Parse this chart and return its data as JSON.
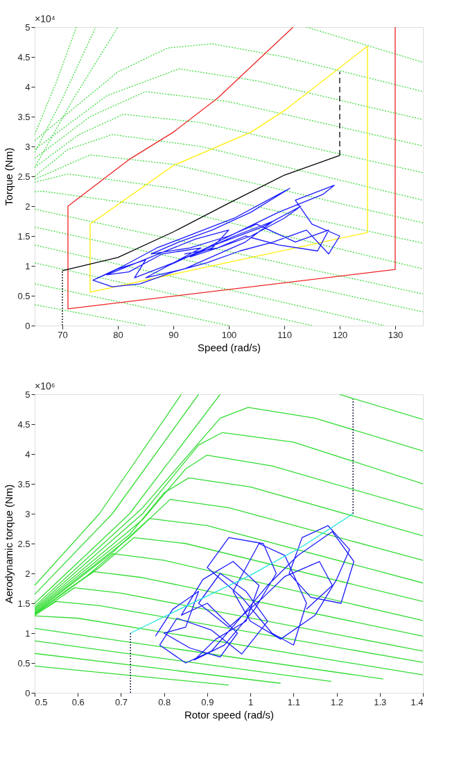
{
  "chart_data": [
    {
      "type": "line",
      "xlabel": "Speed (rad/s)",
      "ylabel": "Torque (Nm)",
      "annotations": [
        "×10⁴"
      ],
      "xlim": [
        65,
        135
      ],
      "ylim": [
        0,
        5
      ],
      "xticks": [
        70,
        80,
        90,
        100,
        110,
        120,
        130
      ],
      "yticks": [
        0,
        0.5,
        1,
        1.5,
        2,
        2.5,
        3,
        3.5,
        4,
        4.5,
        5
      ],
      "series": [
        {
          "color": "#3ddc3d",
          "line_style": "dotted",
          "x": [
            65,
            69,
            72.5
          ],
          "values": [
            3.2,
            4.1,
            5
          ]
        },
        {
          "color": "#3ddc3d",
          "line_style": "dotted",
          "x": [
            65,
            70,
            76
          ],
          "values": [
            2.9,
            3.8,
            5
          ]
        },
        {
          "color": "#3ddc3d",
          "line_style": "dotted",
          "x": [
            65,
            72,
            80
          ],
          "values": [
            2.65,
            3.8,
            5
          ]
        },
        {
          "color": "#3ddc3d",
          "line_style": "dotted",
          "x": [
            65,
            80,
            89,
            97,
            110,
            135
          ],
          "values": [
            3.1,
            4.25,
            4.65,
            4.72,
            4.5,
            3.92
          ]
        },
        {
          "color": "#3ddc3d",
          "line_style": "dotted",
          "x": [
            65,
            78,
            91,
            105,
            135
          ],
          "values": [
            2.95,
            3.85,
            4.3,
            4.1,
            3.45
          ]
        },
        {
          "color": "#3ddc3d",
          "line_style": "dotted",
          "x": [
            65,
            75,
            85,
            100,
            135
          ],
          "values": [
            2.8,
            3.5,
            3.92,
            3.75,
            3.01
          ]
        },
        {
          "color": "#3ddc3d",
          "line_style": "dotted",
          "x": [
            65,
            73,
            81,
            95,
            135
          ],
          "values": [
            2.65,
            3.2,
            3.54,
            3.4,
            2.56
          ]
        },
        {
          "color": "#3ddc3d",
          "line_style": "dotted",
          "x": [
            65,
            71,
            79,
            95,
            135
          ],
          "values": [
            2.5,
            2.95,
            3.2,
            3.0,
            2.1
          ]
        },
        {
          "color": "#3ddc3d",
          "line_style": "dotted",
          "x": [
            65,
            75,
            90,
            135
          ],
          "values": [
            2.45,
            2.86,
            2.7,
            1.72
          ]
        },
        {
          "color": "#3ddc3d",
          "line_style": "dotted",
          "x": [
            65,
            71,
            90,
            135
          ],
          "values": [
            2.4,
            2.54,
            2.3,
            1.38
          ]
        },
        {
          "color": "#3ddc3d",
          "line_style": "dotted",
          "x": [
            65,
            66.5,
            90,
            135
          ],
          "values": [
            2.24,
            2.25,
            1.95,
            0.95
          ]
        },
        {
          "color": "#3ddc3d",
          "line_style": "dotted",
          "x": [
            65,
            135
          ],
          "values": [
            1.95,
            0.53
          ]
        },
        {
          "color": "#3ddc3d",
          "line_style": "dotted",
          "x": [
            65,
            135
          ],
          "values": [
            1.65,
            0.23
          ]
        },
        {
          "color": "#3ddc3d",
          "line_style": "dotted",
          "x": [
            65,
            128
          ],
          "values": [
            1.35,
            0
          ]
        },
        {
          "color": "#3ddc3d",
          "line_style": "dotted",
          "x": [
            65,
            115
          ],
          "values": [
            1.05,
            0
          ]
        },
        {
          "color": "#3ddc3d",
          "line_style": "dotted",
          "x": [
            65,
            100
          ],
          "values": [
            0.7,
            0
          ]
        },
        {
          "color": "#3ddc3d",
          "line_style": "dotted",
          "x": [
            65,
            85
          ],
          "values": [
            0.35,
            0
          ]
        },
        {
          "color": "#3ddc3d",
          "line_style": "dotted",
          "x": [
            114,
            135
          ],
          "values": [
            5,
            4.41
          ]
        },
        {
          "color": "#ee2222",
          "line_style": "solid",
          "x": [
            130,
            130,
            71,
            71,
            82,
            90,
            98,
            111.6
          ],
          "values": [
            5,
            0.94,
            0.28,
            2.0,
            2.78,
            3.24,
            3.81,
            5
          ]
        },
        {
          "color": "#ffee00",
          "line_style": "solid",
          "x": [
            75,
            75,
            125,
            125
          ],
          "values": [
            1.7,
            0.56,
            1.56,
            4.68
          ]
        },
        {
          "color": "#ffee00",
          "line_style": "solid",
          "x": [
            75,
            90,
            104,
            110,
            125
          ],
          "values": [
            1.7,
            2.68,
            3.24,
            3.6,
            4.68
          ]
        },
        {
          "color": "#1a1aff",
          "line_style": "solid",
          "x": [
            76,
            80,
            85,
            83,
            90,
            95,
            88,
            82,
            78,
            86,
            94,
            100,
            97,
            91,
            85,
            92,
            103,
            108,
            101,
            95,
            89,
            96,
            106,
            113,
            110,
            104,
            98,
            93,
            99,
            109,
            117,
            119,
            112,
            115,
            120,
            118,
            114,
            108,
            102,
            96,
            90,
            84,
            79,
            75.5,
            81,
            87,
            94,
            101,
            107,
            111,
            104,
            97,
            91,
            86,
            93,
            100,
            105,
            112,
            118,
            116,
            109,
            103,
            98,
            92
          ],
          "values": [
            0.78,
            0.95,
            1.1,
            0.8,
            1.05,
            1.3,
            1.2,
            0.9,
            0.85,
            1.15,
            1.45,
            1.6,
            1.3,
            1.1,
            0.8,
            0.95,
            1.4,
            1.75,
            1.5,
            1.25,
            1.0,
            1.3,
            1.65,
            2.0,
            1.8,
            1.5,
            1.3,
            1.15,
            1.45,
            1.9,
            2.2,
            2.35,
            2.1,
            1.7,
            1.5,
            1.2,
            1.6,
            1.4,
            1.25,
            1.05,
            0.9,
            0.7,
            0.65,
            0.76,
            1.0,
            1.3,
            1.55,
            1.8,
            2.1,
            2.3,
            1.9,
            1.6,
            1.4,
            1.2,
            1.3,
            1.5,
            1.7,
            1.4,
            1.6,
            1.25,
            1.35,
            1.5,
            1.3,
            1.2
          ]
        },
        {
          "color": "#000000",
          "line_style": "solid",
          "x": [
            70,
            80,
            90,
            100,
            110,
            120
          ],
          "values": [
            0.92,
            1.14,
            1.57,
            2.05,
            2.52,
            2.85
          ]
        },
        {
          "color": "#000000",
          "line_style": "dotted",
          "x": [
            70,
            70
          ],
          "values": [
            0,
            0.92
          ]
        },
        {
          "color": "#000000",
          "line_style": "dashed",
          "x": [
            120,
            120
          ],
          "values": [
            2.85,
            4.25
          ]
        }
      ]
    },
    {
      "type": "line",
      "xlabel": "Rotor speed (rad/s)",
      "ylabel": "Aerodynamic torque (Nm)",
      "annotations": [
        "×10⁶"
      ],
      "xlim": [
        0.5,
        1.4
      ],
      "ylim": [
        0,
        5
      ],
      "xticks": [
        0.5,
        0.6,
        0.7,
        0.8,
        0.9,
        1,
        1.1,
        1.2,
        1.3,
        1.4
      ],
      "yticks": [
        0,
        0.5,
        1,
        1.5,
        2,
        2.5,
        3,
        3.5,
        4,
        4.5,
        5
      ],
      "series": [
        {
          "color": "#33dd33",
          "line_style": "solid",
          "x": [
            0.5,
            0.65,
            0.84
          ],
          "values": [
            1.8,
            3.0,
            5
          ]
        },
        {
          "color": "#33dd33",
          "line_style": "solid",
          "x": [
            0.5,
            0.68,
            0.88
          ],
          "values": [
            1.65,
            3.0,
            5
          ]
        },
        {
          "color": "#33dd33",
          "line_style": "solid",
          "x": [
            0.5,
            0.72,
            0.93
          ],
          "values": [
            1.5,
            3.0,
            5
          ]
        },
        {
          "color": "#33dd33",
          "line_style": "solid",
          "x": [
            0.5,
            0.75,
            0.93,
            0.995,
            1.15,
            1.4
          ],
          "values": [
            1.45,
            3.1,
            4.6,
            4.78,
            4.6,
            4.05
          ]
        },
        {
          "color": "#33dd33",
          "line_style": "solid",
          "x": [
            0.5,
            0.75,
            0.88,
            0.935,
            1.1,
            1.4
          ],
          "values": [
            1.42,
            3.0,
            4.15,
            4.36,
            4.2,
            3.5
          ]
        },
        {
          "color": "#33dd33",
          "line_style": "solid",
          "x": [
            0.5,
            0.75,
            0.85,
            0.899,
            1.05,
            1.4
          ],
          "values": [
            1.4,
            2.9,
            3.75,
            3.98,
            3.8,
            3.07
          ]
        },
        {
          "color": "#33dd33",
          "line_style": "solid",
          "x": [
            0.5,
            0.72,
            0.8,
            0.857,
            1.0,
            1.4
          ],
          "values": [
            1.38,
            2.65,
            3.35,
            3.6,
            3.45,
            2.63
          ]
        },
        {
          "color": "#33dd33",
          "line_style": "solid",
          "x": [
            0.5,
            0.72,
            0.814,
            0.95,
            1.4
          ],
          "values": [
            1.36,
            2.6,
            3.24,
            3.1,
            2.22
          ]
        },
        {
          "color": "#33dd33",
          "line_style": "solid",
          "x": [
            0.5,
            0.68,
            0.766,
            0.9,
            1.4
          ],
          "values": [
            1.34,
            2.35,
            2.92,
            2.8,
            1.84
          ]
        },
        {
          "color": "#33dd33",
          "line_style": "solid",
          "x": [
            0.5,
            0.65,
            0.73,
            0.85,
            1.4
          ],
          "values": [
            1.33,
            2.1,
            2.6,
            2.5,
            1.53
          ]
        },
        {
          "color": "#33dd33",
          "line_style": "solid",
          "x": [
            0.5,
            0.62,
            0.682,
            0.8,
            1.4
          ],
          "values": [
            1.32,
            1.95,
            2.33,
            2.22,
            1.21
          ]
        },
        {
          "color": "#33dd33",
          "line_style": "solid",
          "x": [
            0.5,
            0.58,
            0.637,
            0.75,
            1.4
          ],
          "values": [
            1.31,
            1.75,
            2.03,
            1.93,
            0.95
          ]
        },
        {
          "color": "#33dd33",
          "line_style": "solid",
          "x": [
            0.5,
            0.592,
            0.7,
            1.4
          ],
          "values": [
            1.3,
            1.76,
            1.67,
            0.7
          ]
        },
        {
          "color": "#33dd33",
          "line_style": "solid",
          "x": [
            0.5,
            0.549,
            0.65,
            1.4
          ],
          "values": [
            1.3,
            1.53,
            1.46,
            0.51
          ]
        },
        {
          "color": "#33dd33",
          "line_style": "solid",
          "x": [
            0.5,
            0.6,
            1.4
          ],
          "values": [
            1.29,
            1.25,
            0.3
          ]
        },
        {
          "color": "#33dd33",
          "line_style": "solid",
          "x": [
            0.5,
            1.308
          ],
          "values": [
            1.08,
            0.23
          ]
        },
        {
          "color": "#33dd33",
          "line_style": "solid",
          "x": [
            0.5,
            1.188
          ],
          "values": [
            0.87,
            0.19
          ]
        },
        {
          "color": "#33dd33",
          "line_style": "solid",
          "x": [
            0.5,
            1.07
          ],
          "values": [
            0.66,
            0.16
          ]
        },
        {
          "color": "#33dd33",
          "line_style": "solid",
          "x": [
            0.5,
            0.95
          ],
          "values": [
            0.45,
            0.13
          ]
        },
        {
          "color": "#33dd33",
          "line_style": "solid",
          "x": [
            1.206,
            1.4
          ],
          "values": [
            5,
            4.58
          ]
        },
        {
          "color": "#1a1aff",
          "line_style": "solid",
          "x": [
            0.78,
            0.82,
            0.88,
            0.85,
            0.8,
            0.86,
            0.93,
            0.97,
            0.9,
            0.84,
            0.89,
            0.96,
            1.02,
            0.99,
            0.92,
            0.87,
            0.94,
            1.01,
            1.06,
            1.03,
            0.95,
            0.9,
            0.98,
            1.05,
            1.1,
            1.13,
            1.08,
            1.02,
            0.96,
            1.0,
            1.07,
            1.15,
            1.2,
            1.23,
            1.18,
            1.12,
            1.09,
            1.14,
            1.21,
            1.24,
            1.19,
            1.11,
            1.04,
            0.97,
            0.91,
            0.85,
            0.79,
            0.83,
            0.91,
            0.98,
            1.04,
            0.99,
            0.93,
            0.88,
            0.95,
            1.03,
            1.08,
            1.16,
            1.19,
            1.13
          ],
          "values": [
            0.95,
            1.4,
            1.7,
            1.1,
            1.0,
            0.75,
            0.6,
            1.0,
            1.5,
            1.3,
            1.9,
            2.2,
            1.8,
            1.2,
            0.9,
            0.55,
            0.8,
            1.4,
            2.0,
            2.5,
            2.6,
            2.1,
            1.6,
            1.0,
            0.8,
            1.5,
            2.3,
            2.5,
            1.7,
            1.2,
            0.9,
            1.3,
            1.9,
            2.4,
            2.8,
            2.6,
            2.0,
            1.6,
            1.5,
            2.2,
            2.7,
            2.3,
            1.8,
            1.2,
            0.7,
            0.5,
            0.8,
            1.25,
            1.05,
            0.65,
            1.2,
            1.7,
            2.0,
            1.5,
            1.1,
            1.6,
            1.95,
            2.2,
            1.8,
            1.4
          ]
        },
        {
          "color": "#22e5dd",
          "line_style": "solid",
          "x": [
            0.722,
            0.85,
            1.0,
            1.12,
            1.238
          ],
          "values": [
            1.0,
            1.45,
            1.97,
            2.45,
            3.0
          ]
        },
        {
          "color": "#00002b",
          "line_style": "dotted",
          "x": [
            0.722,
            0.722
          ],
          "values": [
            0,
            1.0
          ]
        },
        {
          "color": "#00002b",
          "line_style": "dotted",
          "x": [
            1.238,
            1.238
          ],
          "values": [
            3.0,
            4.92
          ]
        }
      ]
    }
  ]
}
